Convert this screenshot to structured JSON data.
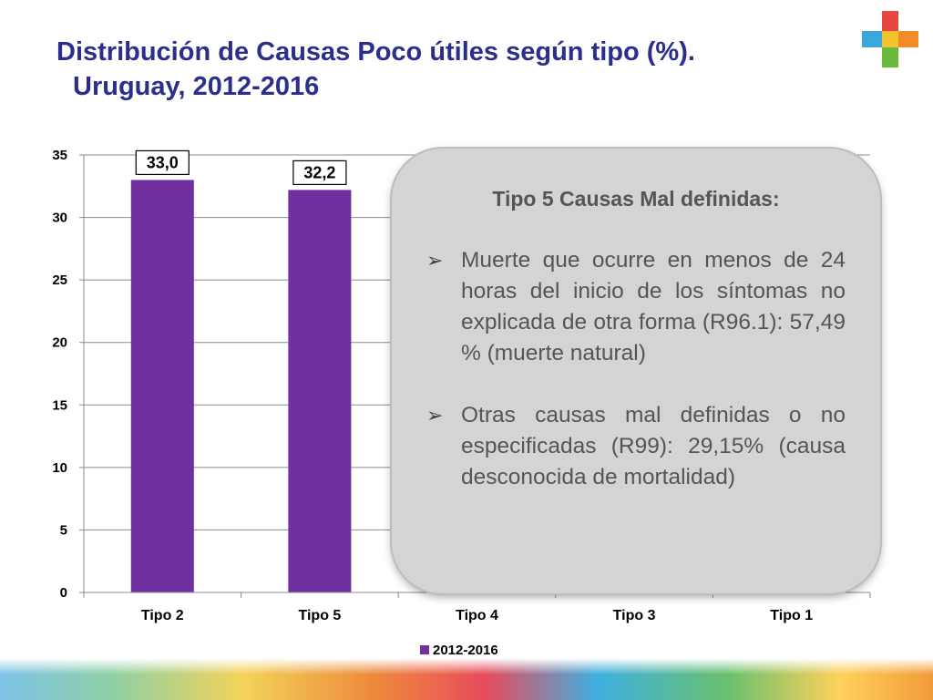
{
  "slide": {
    "title_line1": "Distribución de Causas Poco útiles según tipo (%).",
    "title_line2": "Uruguay, 2012-2016"
  },
  "icons": {
    "logo": "health-cross-logo"
  },
  "colors": {
    "bar": "#7030a0",
    "title": "#2b2f8c"
  },
  "callout": {
    "heading": "Tipo 5 Causas Mal definidas:",
    "items": [
      "Muerte que ocurre en menos de 24 horas del inicio de los síntomas no explicada de otra forma (R96.1): 57,49 % (muerte natural)",
      "Otras causas mal definidas o no especificadas (R99): 29,15% (causa desconocida de mortalidad)"
    ]
  },
  "chart_data": {
    "type": "bar",
    "title": "",
    "xlabel": "",
    "ylabel": "",
    "categories": [
      "Tipo 2",
      "Tipo 5",
      "Tipo 4",
      "Tipo 3",
      "Tipo 1"
    ],
    "series": [
      {
        "name": "2012-2016",
        "values": [
          33.0,
          32.2,
          null,
          null,
          null
        ],
        "labels": [
          "33,0",
          "32,2",
          null,
          null,
          null
        ]
      }
    ],
    "ylim": [
      0,
      35
    ],
    "yticks": [
      0,
      5,
      10,
      15,
      20,
      25,
      30,
      35
    ],
    "grid": true,
    "legend": "bottom"
  }
}
